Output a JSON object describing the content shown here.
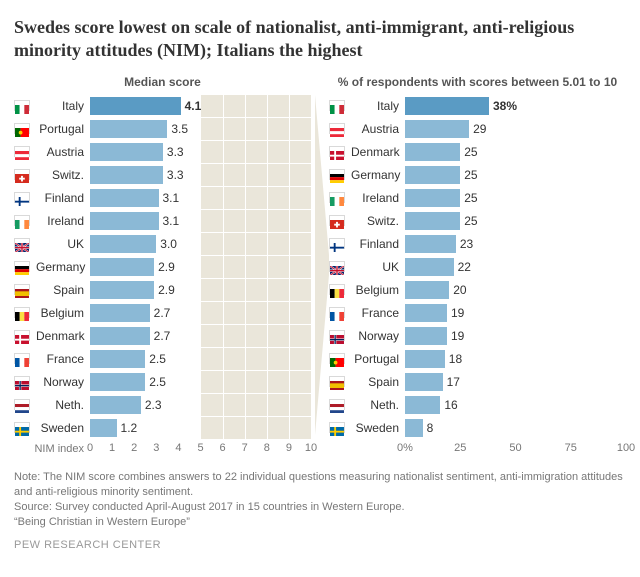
{
  "title": "Swedes score lowest on scale of nationalist, anti-immigrant, anti-religious minority attitudes (NIM); Italians the highest",
  "colors": {
    "bar": "#8bb9d6",
    "bar_bold": "#5a9bc4",
    "shade": "#eae6da",
    "text": "#333333",
    "muted": "#777777"
  },
  "left_chart": {
    "title": "Median score",
    "axis_label": "NIM index",
    "max": 10,
    "shade_start": 5.01,
    "shade_end": 10,
    "ticks": [
      0,
      1,
      2,
      3,
      4,
      5,
      6,
      7,
      8,
      9,
      10
    ],
    "rows": [
      {
        "country": "Italy",
        "value": 4.1,
        "label": "4.1",
        "bold": true,
        "flag": "it"
      },
      {
        "country": "Portugal",
        "value": 3.5,
        "label": "3.5",
        "bold": false,
        "flag": "pt"
      },
      {
        "country": "Austria",
        "value": 3.3,
        "label": "3.3",
        "bold": false,
        "flag": "at"
      },
      {
        "country": "Switz.",
        "value": 3.3,
        "label": "3.3",
        "bold": false,
        "flag": "ch"
      },
      {
        "country": "Finland",
        "value": 3.1,
        "label": "3.1",
        "bold": false,
        "flag": "fi"
      },
      {
        "country": "Ireland",
        "value": 3.1,
        "label": "3.1",
        "bold": false,
        "flag": "ie"
      },
      {
        "country": "UK",
        "value": 3.0,
        "label": "3.0",
        "bold": false,
        "flag": "gb"
      },
      {
        "country": "Germany",
        "value": 2.9,
        "label": "2.9",
        "bold": false,
        "flag": "de"
      },
      {
        "country": "Spain",
        "value": 2.9,
        "label": "2.9",
        "bold": false,
        "flag": "es"
      },
      {
        "country": "Belgium",
        "value": 2.7,
        "label": "2.7",
        "bold": false,
        "flag": "be"
      },
      {
        "country": "Denmark",
        "value": 2.7,
        "label": "2.7",
        "bold": false,
        "flag": "dk"
      },
      {
        "country": "France",
        "value": 2.5,
        "label": "2.5",
        "bold": false,
        "flag": "fr"
      },
      {
        "country": "Norway",
        "value": 2.5,
        "label": "2.5",
        "bold": false,
        "flag": "no"
      },
      {
        "country": "Neth.",
        "value": 2.3,
        "label": "2.3",
        "bold": false,
        "flag": "nl"
      },
      {
        "country": "Sweden",
        "value": 1.2,
        "label": "1.2",
        "bold": false,
        "flag": "se"
      }
    ]
  },
  "right_chart": {
    "title": "% of respondents with scores between 5.01 to 10",
    "max": 100,
    "ticks": [
      0,
      25,
      50,
      75,
      100
    ],
    "rows": [
      {
        "country": "Italy",
        "value": 38,
        "label": "38%",
        "bold": true,
        "flag": "it"
      },
      {
        "country": "Austria",
        "value": 29,
        "label": "29",
        "bold": false,
        "flag": "at"
      },
      {
        "country": "Denmark",
        "value": 25,
        "label": "25",
        "bold": false,
        "flag": "dk"
      },
      {
        "country": "Germany",
        "value": 25,
        "label": "25",
        "bold": false,
        "flag": "de"
      },
      {
        "country": "Ireland",
        "value": 25,
        "label": "25",
        "bold": false,
        "flag": "ie"
      },
      {
        "country": "Switz.",
        "value": 25,
        "label": "25",
        "bold": false,
        "flag": "ch"
      },
      {
        "country": "Finland",
        "value": 23,
        "label": "23",
        "bold": false,
        "flag": "fi"
      },
      {
        "country": "UK",
        "value": 22,
        "label": "22",
        "bold": false,
        "flag": "gb"
      },
      {
        "country": "Belgium",
        "value": 20,
        "label": "20",
        "bold": false,
        "flag": "be"
      },
      {
        "country": "France",
        "value": 19,
        "label": "19",
        "bold": false,
        "flag": "fr"
      },
      {
        "country": "Norway",
        "value": 19,
        "label": "19",
        "bold": false,
        "flag": "no"
      },
      {
        "country": "Portugal",
        "value": 18,
        "label": "18",
        "bold": false,
        "flag": "pt"
      },
      {
        "country": "Spain",
        "value": 17,
        "label": "17",
        "bold": false,
        "flag": "es"
      },
      {
        "country": "Neth.",
        "value": 16,
        "label": "16",
        "bold": false,
        "flag": "nl"
      },
      {
        "country": "Sweden",
        "value": 8,
        "label": "8",
        "bold": false,
        "flag": "se"
      }
    ]
  },
  "note": "Note: The NIM score combines answers to 22 individual questions measuring nationalist sentiment, anti-immigration attitudes and anti-religious minority sentiment.",
  "source": "Source: Survey conducted April-August 2017 in 15 countries in Western Europe.",
  "report": "“Being Christian in Western Europe”",
  "footer": "PEW RESEARCH CENTER"
}
